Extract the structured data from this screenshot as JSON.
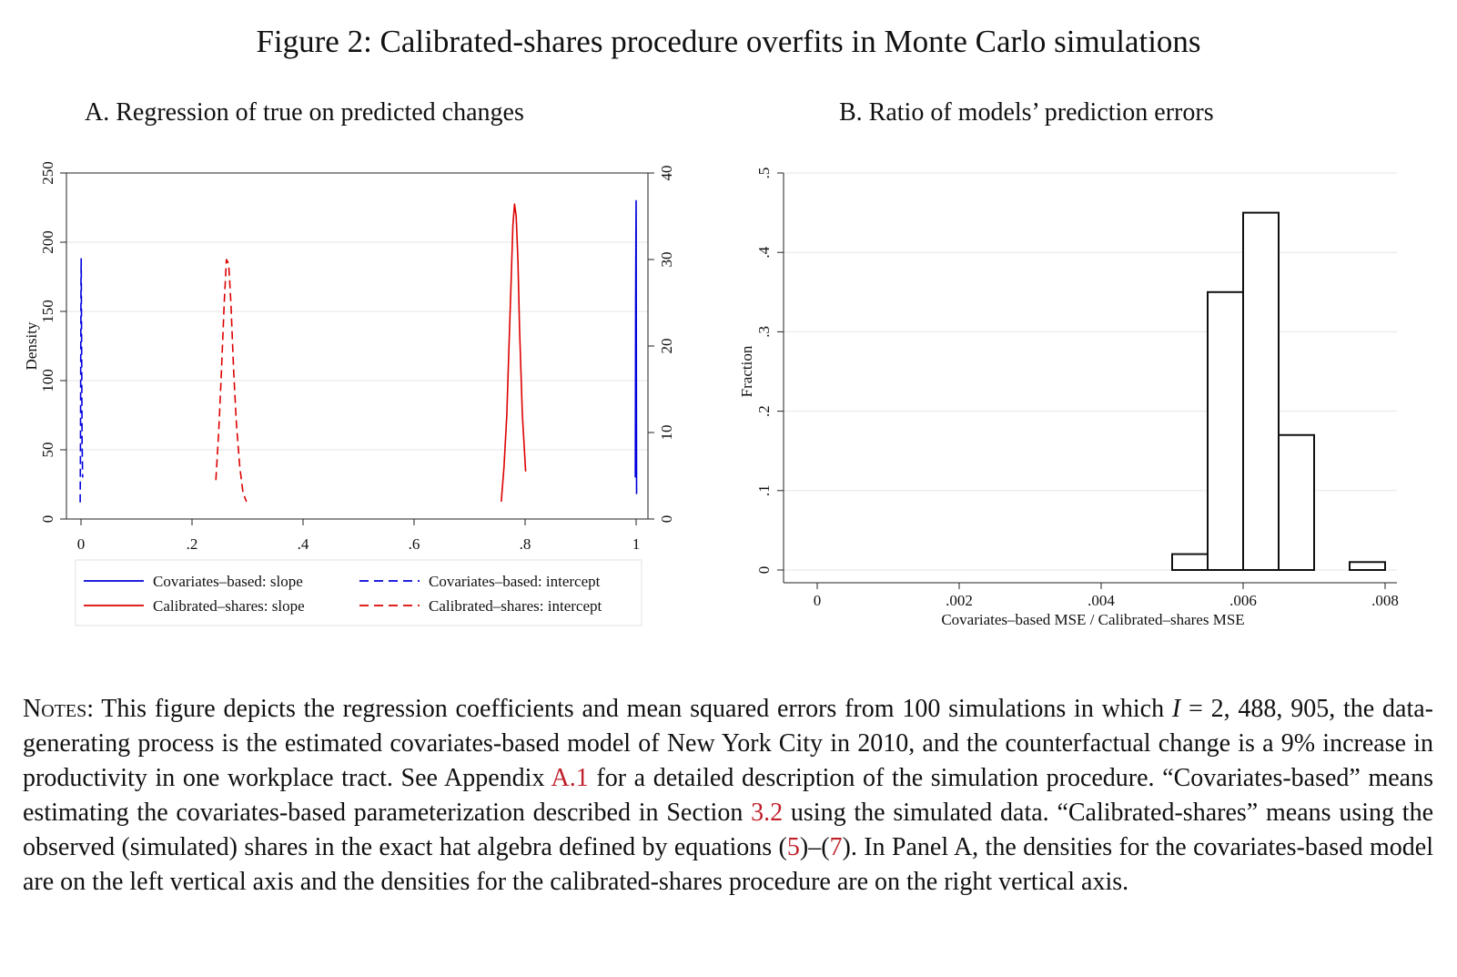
{
  "figure": {
    "title": "Figure 2: Calibrated-shares procedure overfits in Monte Carlo simulations"
  },
  "chart_data": [
    {
      "type": "line",
      "title": "A. Regression of true on predicted changes",
      "ylabel": "Density",
      "ylim": [
        0,
        250
      ],
      "yticks": [
        "0",
        "50",
        "100",
        "150",
        "200",
        "250"
      ],
      "y2lim": [
        0,
        40
      ],
      "y2ticks": [
        "0",
        "10",
        "20",
        "30",
        "40"
      ],
      "xlim": [
        0,
        1
      ],
      "xticks": [
        "0",
        ".2",
        ".4",
        ".6",
        ".8",
        "1"
      ],
      "grid": true,
      "legend_position": "bottom",
      "series": [
        {
          "name": "Covariates–based: slope",
          "axis": "left",
          "color": "#0000dd",
          "dash": "solid",
          "points": [
            [
              0.9985,
              30
            ],
            [
              0.9989,
              90
            ],
            [
              0.9992,
              160
            ],
            [
              0.9996,
              210
            ],
            [
              1.0,
              230
            ],
            [
              1.0003,
              140
            ],
            [
              1.0006,
              60
            ],
            [
              1.0009,
              18
            ]
          ]
        },
        {
          "name": "Covariates–based: intercept",
          "axis": "left",
          "color": "#0000dd",
          "dash": "dashed",
          "points": [
            [
              -0.0015,
              12
            ],
            [
              -0.001,
              45
            ],
            [
              -0.0005,
              110
            ],
            [
              0.0,
              170
            ],
            [
              0.0003,
              188
            ],
            [
              0.0008,
              150
            ],
            [
              0.0015,
              95
            ],
            [
              0.002,
              55
            ],
            [
              0.003,
              30
            ]
          ]
        },
        {
          "name": "Calibrated–shares: slope",
          "axis": "right",
          "color": "#dd0000",
          "dash": "solid",
          "points": [
            [
              0.757,
              2
            ],
            [
              0.762,
              6
            ],
            [
              0.767,
              12
            ],
            [
              0.771,
              20
            ],
            [
              0.775,
              28
            ],
            [
              0.778,
              34
            ],
            [
              0.781,
              36.4
            ],
            [
              0.784,
              35
            ],
            [
              0.787,
              30
            ],
            [
              0.79,
              22
            ],
            [
              0.795,
              12
            ],
            [
              0.801,
              5.5
            ]
          ]
        },
        {
          "name": "Calibrated–shares: intercept",
          "axis": "right",
          "color": "#dd0000",
          "dash": "dashed",
          "points": [
            [
              0.243,
              4.5
            ],
            [
              0.248,
              10
            ],
            [
              0.253,
              17
            ],
            [
              0.258,
              25
            ],
            [
              0.262,
              30
            ],
            [
              0.266,
              29.5
            ],
            [
              0.27,
              25
            ],
            [
              0.275,
              17
            ],
            [
              0.28,
              11
            ],
            [
              0.286,
              6
            ],
            [
              0.292,
              3
            ],
            [
              0.298,
              2
            ]
          ]
        }
      ]
    },
    {
      "type": "bar",
      "title": "B. Ratio of models’ prediction errors",
      "xlabel": "Covariates–based MSE / Calibrated–shares MSE",
      "ylabel": "Fraction",
      "xlim": [
        -0.0002,
        0.0081
      ],
      "xticks": [
        "0",
        ".002",
        ".004",
        ".006",
        ".008"
      ],
      "ylim": [
        0,
        0.5
      ],
      "yticks": [
        "0",
        ".1",
        ".2",
        ".3",
        ".4",
        ".5"
      ],
      "grid": true,
      "bins": [
        {
          "start": 0.005,
          "end": 0.0055,
          "fraction": 0.02
        },
        {
          "start": 0.0055,
          "end": 0.006,
          "fraction": 0.35
        },
        {
          "start": 0.006,
          "end": 0.0065,
          "fraction": 0.45
        },
        {
          "start": 0.0065,
          "end": 0.007,
          "fraction": 0.17
        },
        {
          "start": 0.0075,
          "end": 0.008,
          "fraction": 0.01
        }
      ]
    }
  ],
  "notes": {
    "label": "Notes:",
    "text1": " This figure depicts the regression coefficients and mean squared errors from 100 simulations in which ",
    "var_i": "I",
    "text2": " = 2, 488, 905, the data-generating process is the estimated covariates-based model of New York City in 2010, and the counterfactual change is a 9% increase in productivity in one workplace tract.  See Appendix ",
    "ref1": "A.1",
    "text3": " for a detailed description of the simulation procedure.  “Covariates-based” means estimating the covariates-based parameterization described in Section ",
    "ref2": "3.2",
    "text4": " using the simulated data.  “Calibrated-shares” means using the observed (simulated) shares in the exact hat algebra defined by equations (",
    "ref3": "5",
    "text5": ")–(",
    "ref4": "7",
    "text6": ").  In Panel A, the densities for the covariates-based model are on the left vertical axis and the densities for the calibrated-shares procedure are on the right vertical axis."
  }
}
